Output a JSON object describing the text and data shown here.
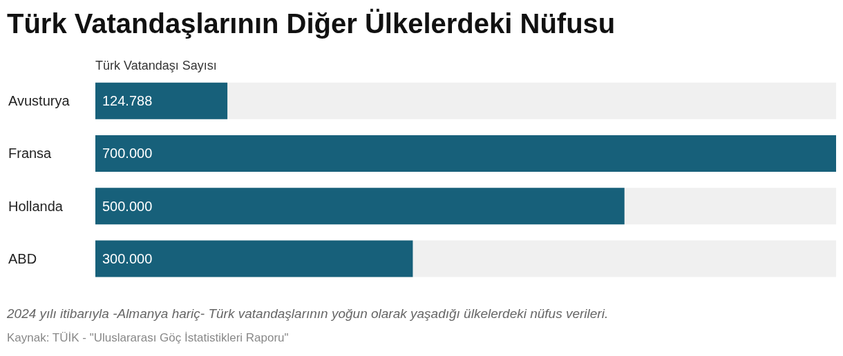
{
  "chart_data": {
    "type": "bar",
    "orientation": "horizontal",
    "title": "Türk Vatandaşlarının Diğer Ülkelerdeki Nüfusu",
    "xlabel": "Türk Vatandaşı Sayısı",
    "categories": [
      "Avusturya",
      "Fransa",
      "Hollanda",
      "ABD"
    ],
    "values": [
      124788,
      700000,
      500000,
      300000
    ],
    "value_labels": [
      "124.788",
      "700.000",
      "500.000",
      "300.000"
    ],
    "color": "#17607a",
    "annotations": [
      "2024 yılı itibarıyla -Almanya hariç- Türk vatandaşlarının yoğun olarak yaşadığı ülkelerdeki nüfus verileri.",
      "Kaynak: TÜİK - \"Uluslararası Göç İstatistikleri Raporu\""
    ]
  }
}
